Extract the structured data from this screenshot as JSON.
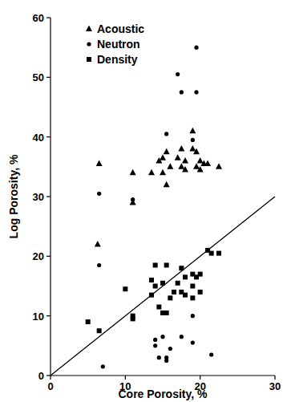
{
  "chart_data": {
    "type": "scatter",
    "x_label": "Core Porosity, %",
    "y_label": "Log Porosity, %",
    "xlim": [
      0,
      30
    ],
    "ylim": [
      0,
      60
    ],
    "xticks": [
      0,
      10,
      20,
      30
    ],
    "yticks": [
      0,
      10,
      20,
      30,
      40,
      50,
      60
    ],
    "legend": "top-left",
    "grid": false,
    "series": [
      {
        "name": "Acoustic",
        "marker": "triangle",
        "color": "#000000",
        "x": [
          6.5,
          6.3,
          11,
          11,
          13.5,
          14.5,
          15,
          15,
          15.5,
          15.5,
          16,
          17,
          17.5,
          17.5,
          18,
          18,
          19,
          19,
          19.5,
          19.5,
          20,
          20,
          20.5,
          21,
          22.5
        ],
        "values": [
          35.5,
          22,
          34,
          29,
          34,
          36,
          36.5,
          34,
          32,
          37.5,
          35,
          36.5,
          38,
          35,
          34.5,
          36,
          41,
          38,
          37.5,
          35,
          34.5,
          36,
          35.5,
          35.5,
          35
        ]
      },
      {
        "name": "Neutron",
        "marker": "circle",
        "color": "#000000",
        "x": [
          6.5,
          6.5,
          7,
          11,
          15.5,
          17,
          17.5,
          19.5,
          19.5,
          19,
          19,
          19,
          17.5,
          15,
          14,
          14,
          15.5,
          16,
          14.5,
          21.5,
          15.5
        ],
        "values": [
          30.5,
          18.5,
          1.5,
          29.5,
          40.5,
          50.5,
          47.5,
          55,
          47.5,
          39.5,
          10,
          5.5,
          6.5,
          6.5,
          5,
          6,
          3,
          4.5,
          3,
          3.5,
          2.5
        ]
      },
      {
        "name": "Density",
        "marker": "square",
        "color": "#000000",
        "x": [
          5,
          6.5,
          10,
          11,
          11,
          13.5,
          14,
          14,
          14.5,
          15,
          15,
          15.5,
          15.5,
          16,
          16.5,
          17,
          17.5,
          17.5,
          18,
          18,
          19,
          19,
          19.5,
          20,
          20,
          21,
          21.5,
          22.5,
          19,
          13.5
        ],
        "values": [
          9,
          7.5,
          14.5,
          10,
          9.5,
          13.5,
          15,
          18.5,
          11.5,
          15.5,
          10.5,
          18.5,
          10.5,
          13,
          14,
          15.5,
          18,
          14,
          13.5,
          16.5,
          17,
          15,
          16.5,
          17,
          14,
          21,
          20.5,
          20.5,
          13,
          16
        ]
      },
      {
        "type": "line",
        "line_style": "solid",
        "color": "#000000",
        "x": [
          0,
          30
        ],
        "values": [
          0,
          30
        ]
      }
    ]
  }
}
